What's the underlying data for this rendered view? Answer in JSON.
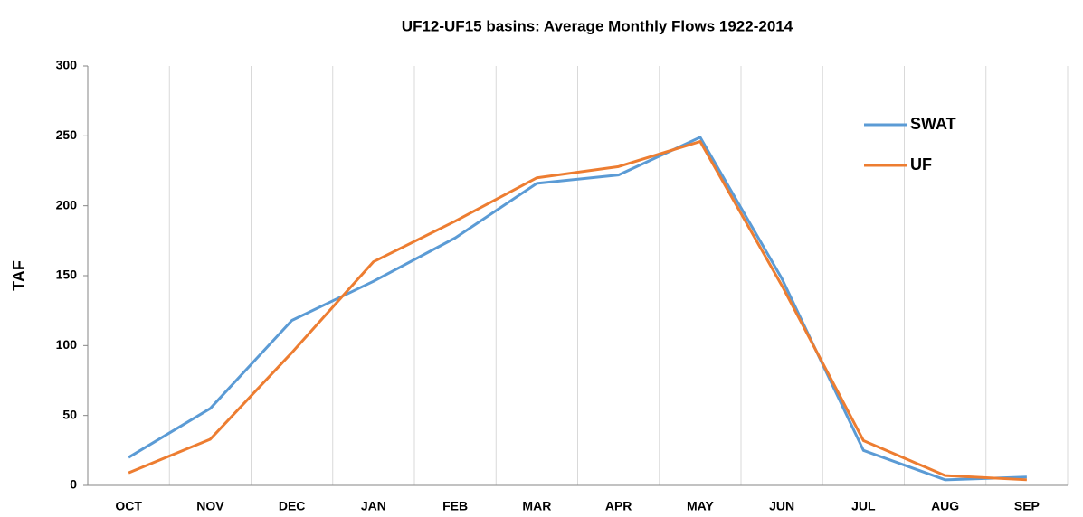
{
  "chart_data": {
    "type": "line",
    "title": "UF12-UF15 basins: Average Monthly Flows 1922-2014",
    "y_label": "TAF",
    "categories": [
      "OCT",
      "NOV",
      "DEC",
      "JAN",
      "FEB",
      "MAR",
      "APR",
      "MAY",
      "JUN",
      "JUL",
      "AUG",
      "SEP"
    ],
    "series": [
      {
        "name": "SWAT",
        "color": "#5b9bd5",
        "values": [
          20,
          55,
          118,
          146,
          177,
          216,
          222,
          249,
          148,
          25,
          4,
          6
        ]
      },
      {
        "name": "UF",
        "color": "#ed7d31",
        "values": [
          9,
          33,
          95,
          160,
          189,
          220,
          228,
          246,
          143,
          32,
          7,
          4
        ]
      }
    ],
    "ylim": [
      0,
      300
    ],
    "yticks": [
      0,
      50,
      100,
      150,
      200,
      250,
      300
    ],
    "grid": "x",
    "legend": "top-right"
  }
}
